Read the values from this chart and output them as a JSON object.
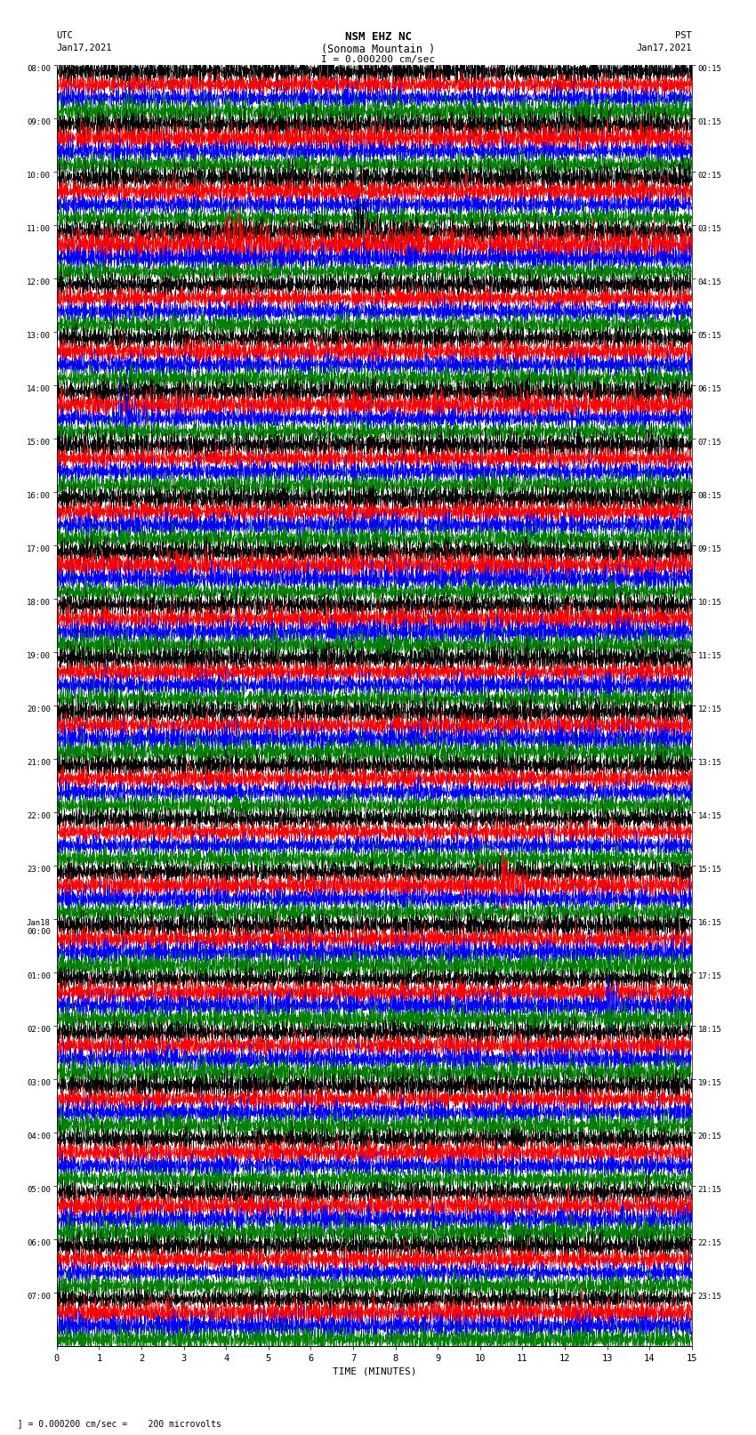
{
  "title_line1": "NSM EHZ NC",
  "title_line2": "(Sonoma Mountain )",
  "scale_label": "I = 0.000200 cm/sec",
  "left_label_top": "UTC",
  "left_label_date": "Jan17,2021",
  "right_label_top": "PST",
  "right_label_date": "Jan17,2021",
  "bottom_label": "TIME (MINUTES)",
  "bottom_note": "  ] = 0.000200 cm/sec =    200 microvolts",
  "utc_times_major": [
    "08:00",
    "09:00",
    "10:00",
    "11:00",
    "12:00",
    "13:00",
    "14:00",
    "15:00",
    "16:00",
    "17:00",
    "18:00",
    "19:00",
    "20:00",
    "21:00",
    "22:00",
    "23:00",
    "Jan18\n00:00",
    "01:00",
    "02:00",
    "03:00",
    "04:00",
    "05:00",
    "06:00",
    "07:00"
  ],
  "pst_times_major": [
    "00:15",
    "01:15",
    "02:15",
    "03:15",
    "04:15",
    "05:15",
    "06:15",
    "07:15",
    "08:15",
    "09:15",
    "10:15",
    "11:15",
    "12:15",
    "13:15",
    "14:15",
    "15:15",
    "16:15",
    "17:15",
    "18:15",
    "19:15",
    "20:15",
    "21:15",
    "22:15",
    "23:15"
  ],
  "num_hour_groups": 24,
  "traces_per_group": 4,
  "colors": [
    "black",
    "red",
    "blue",
    "green"
  ],
  "x_min": 0,
  "x_max": 15,
  "x_ticks": [
    0,
    1,
    2,
    3,
    4,
    5,
    6,
    7,
    8,
    9,
    10,
    11,
    12,
    13,
    14,
    15
  ],
  "bg_color": "white",
  "fig_width": 8.5,
  "fig_height": 16.13,
  "dpi": 100
}
